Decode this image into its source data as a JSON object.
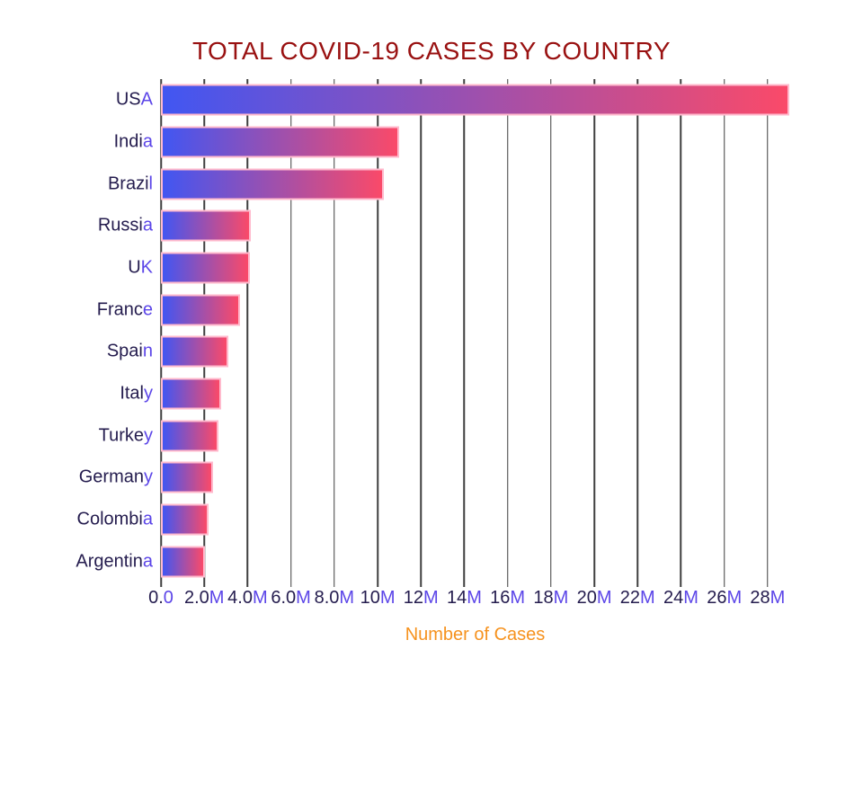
{
  "chart_data": {
    "type": "bar",
    "orientation": "horizontal",
    "title": "TOTAL COVID-19 CASES BY COUNTRY",
    "xlabel": "Number of Cases",
    "ylabel": "",
    "legend": "none",
    "grid": "vertical-only",
    "categories": [
      "USA",
      "India",
      "Brazil",
      "Russia",
      "UK",
      "France",
      "Spain",
      "Italy",
      "Turkey",
      "Germany",
      "Colombia",
      "Argentina"
    ],
    "values": [
      29000000,
      11000000,
      10300000,
      4150000,
      4100000,
      3650000,
      3100000,
      2800000,
      2650000,
      2400000,
      2200000,
      2050000
    ],
    "xlim": [
      0,
      29000000
    ],
    "x_ticks": [
      {
        "value": 0,
        "label": "0.0"
      },
      {
        "value": 2000000,
        "label": "2.0M"
      },
      {
        "value": 4000000,
        "label": "4.0M"
      },
      {
        "value": 6000000,
        "label": "6.0M"
      },
      {
        "value": 8000000,
        "label": "8.0M"
      },
      {
        "value": 10000000,
        "label": "10M"
      },
      {
        "value": 12000000,
        "label": "12M"
      },
      {
        "value": 14000000,
        "label": "14M"
      },
      {
        "value": 16000000,
        "label": "16M"
      },
      {
        "value": 18000000,
        "label": "18M"
      },
      {
        "value": 20000000,
        "label": "20M"
      },
      {
        "value": 22000000,
        "label": "22M"
      },
      {
        "value": 24000000,
        "label": "24M"
      },
      {
        "value": 26000000,
        "label": "26M"
      },
      {
        "value": 28000000,
        "label": "28M"
      }
    ],
    "colors": {
      "background": "#ffffff",
      "title": "#991111",
      "xlabel": "#f6921e",
      "tick_main": "#241c4e",
      "tick_accent": "#5b45e8",
      "bar_gradient_start": "#4156f2",
      "bar_gradient_end": "#fa4a69",
      "bar_border": "#ffbacd",
      "gridline": "#3f3f3f"
    }
  }
}
